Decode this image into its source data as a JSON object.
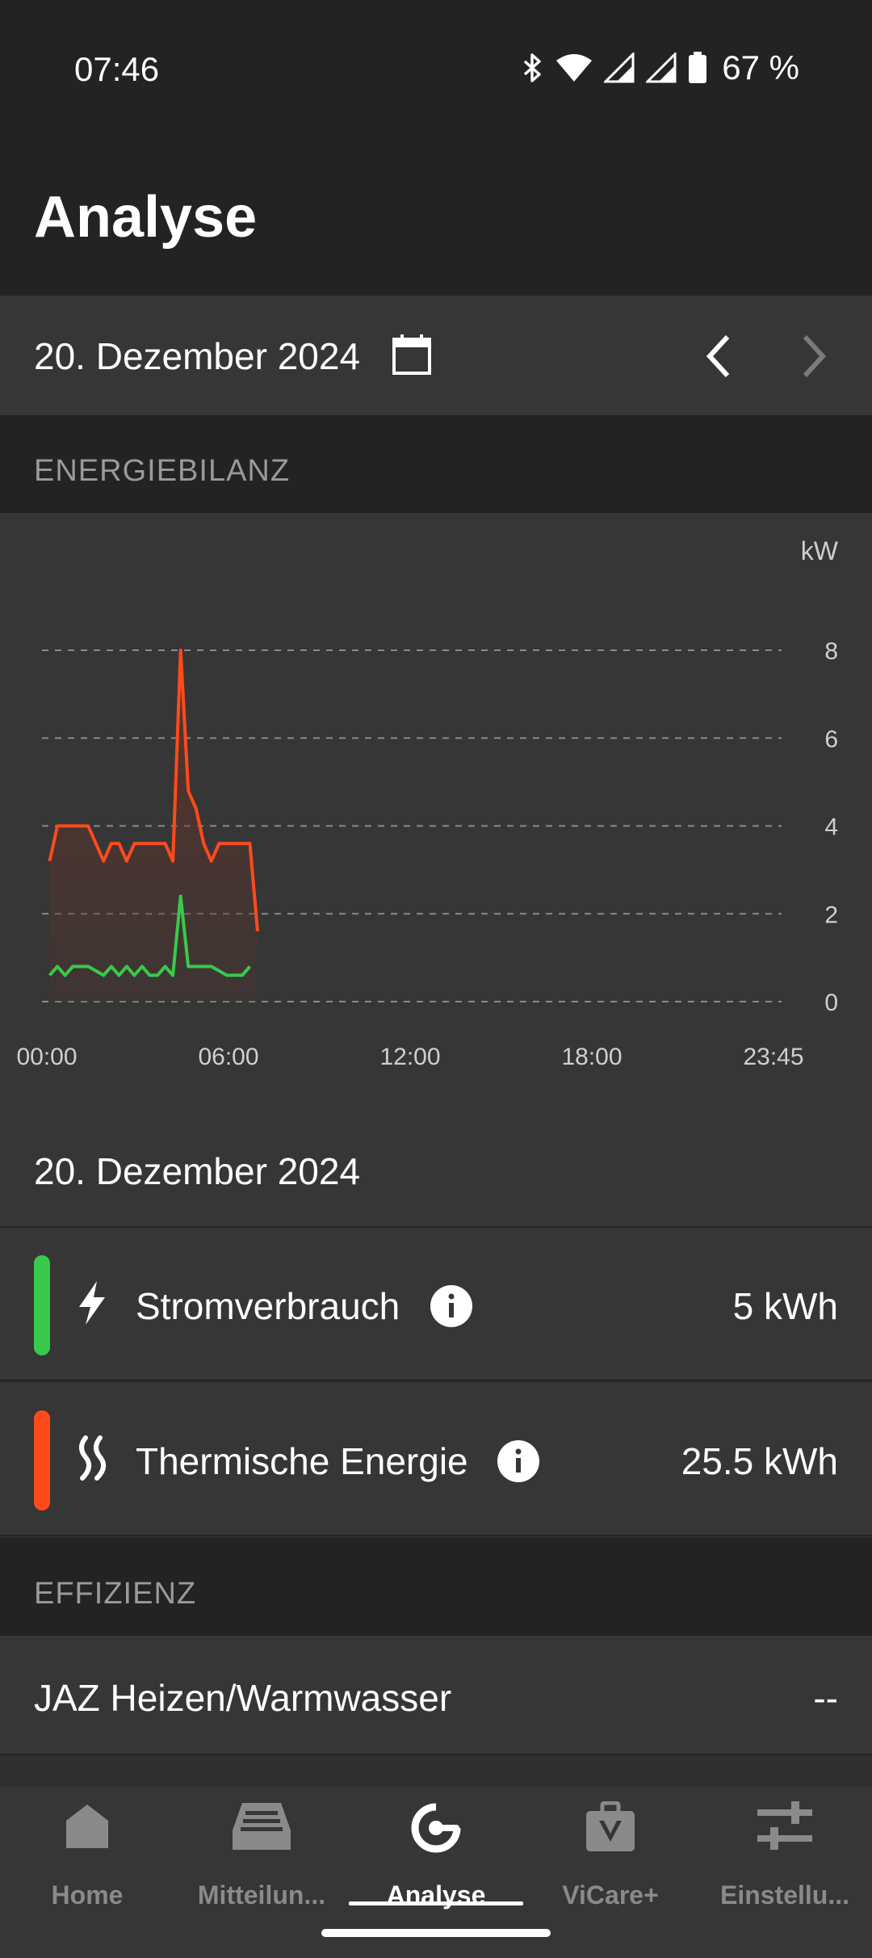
{
  "status_bar": {
    "time": "07:46",
    "battery": "67 %",
    "icons": [
      "bluetooth-icon",
      "wifi-icon",
      "signal-icon",
      "signal-icon",
      "battery-icon"
    ]
  },
  "header": {
    "title": "Analyse"
  },
  "date_selector": {
    "date": "20. Dezember 2024",
    "icons": [
      "calendar-icon",
      "chevron-left-icon",
      "chevron-right-icon"
    ]
  },
  "sections": {
    "energy_balance": "ENERGIEBILANZ",
    "efficiency": "EFFIZIENZ"
  },
  "chart_data": {
    "type": "line",
    "ylabel": "kW",
    "ylim": [
      0,
      8
    ],
    "y_ticks": [
      "0",
      "2",
      "4",
      "6",
      "8"
    ],
    "x_ticks": [
      "00:00",
      "06:00",
      "12:00",
      "18:00",
      "23:45"
    ],
    "xlim_hours": [
      0,
      23.75
    ],
    "grid": true,
    "series": [
      {
        "color": "#ff4a1c",
        "area_fill": true,
        "x": [
          0.25,
          0.5,
          1.0,
          1.5,
          1.75,
          2.0,
          2.25,
          2.5,
          2.75,
          3.0,
          3.25,
          3.5,
          4.0,
          4.25,
          4.5,
          4.75,
          5.0,
          5.25,
          5.5,
          5.75,
          6.0,
          6.25,
          6.5,
          6.75,
          7.0
        ],
        "y": [
          3.2,
          4.0,
          4.0,
          4.0,
          3.6,
          3.2,
          3.6,
          3.6,
          3.2,
          3.6,
          3.6,
          3.6,
          3.6,
          3.2,
          8.0,
          4.8,
          4.4,
          3.6,
          3.2,
          3.6,
          3.6,
          3.6,
          3.6,
          3.6,
          1.6
        ]
      },
      {
        "color": "#39c94a",
        "area_fill": false,
        "x": [
          0.25,
          0.5,
          0.75,
          1.0,
          1.5,
          2.0,
          2.25,
          2.5,
          2.75,
          3.0,
          3.25,
          3.5,
          3.75,
          4.0,
          4.25,
          4.5,
          4.75,
          5.0,
          5.5,
          6.0,
          6.25,
          6.5,
          6.75
        ],
        "y": [
          0.6,
          0.8,
          0.6,
          0.8,
          0.8,
          0.6,
          0.8,
          0.6,
          0.8,
          0.6,
          0.8,
          0.6,
          0.6,
          0.8,
          0.6,
          2.4,
          0.8,
          0.8,
          0.8,
          0.6,
          0.6,
          0.6,
          0.8
        ]
      }
    ]
  },
  "summary": {
    "date": "20. Dezember 2024",
    "rows": [
      {
        "label": "Stromverbrauch",
        "value": "5 kWh",
        "color": "#39c94a",
        "icon": "lightning-icon"
      },
      {
        "label": "Thermische Energie",
        "value": "25.5 kWh",
        "color": "#ff4a1c",
        "icon": "heat-waves-icon"
      }
    ]
  },
  "efficiency": {
    "label": "JAZ Heizen/Warmwasser",
    "value": "--"
  },
  "bottom_nav": {
    "items": [
      {
        "label": "Home",
        "icon": "home-icon"
      },
      {
        "label": "Mitteilun...",
        "icon": "inbox-icon"
      },
      {
        "label": "Analyse",
        "icon": "analysis-icon",
        "active": true
      },
      {
        "label": "ViCare+",
        "icon": "shop-bag-icon"
      },
      {
        "label": "Einstellu...",
        "icon": "sliders-icon"
      }
    ]
  }
}
